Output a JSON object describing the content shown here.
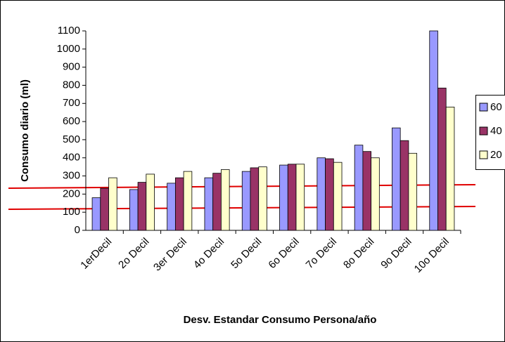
{
  "chart_data": {
    "type": "bar",
    "y_label": "Consumo diario (ml)",
    "x_label": "Desv. Estandar Consumo Persona/año",
    "categories": [
      "1erDecil",
      "2o Decil",
      "3er Decil",
      "4o Decil",
      "5o Decil",
      "6o Decil",
      "7o Decil",
      "8o Decil",
      "9o Decil",
      "10o Decil"
    ],
    "series": [
      {
        "name": "60",
        "color": "#9999FF",
        "values": [
          180,
          225,
          260,
          290,
          325,
          360,
          400,
          470,
          565,
          1100
        ]
      },
      {
        "name": "40",
        "color": "#993366",
        "values": [
          232,
          265,
          290,
          315,
          345,
          365,
          395,
          435,
          495,
          785
        ]
      },
      {
        "name": "20",
        "color": "#FFFFCC",
        "values": [
          290,
          310,
          325,
          335,
          350,
          365,
          375,
          400,
          425,
          680
        ]
      }
    ],
    "ylim": [
      0,
      1100
    ],
    "yticks": [
      0,
      100,
      200,
      300,
      400,
      500,
      600,
      700,
      800,
      900,
      1000,
      1100
    ],
    "grid": false,
    "legend": "right"
  }
}
